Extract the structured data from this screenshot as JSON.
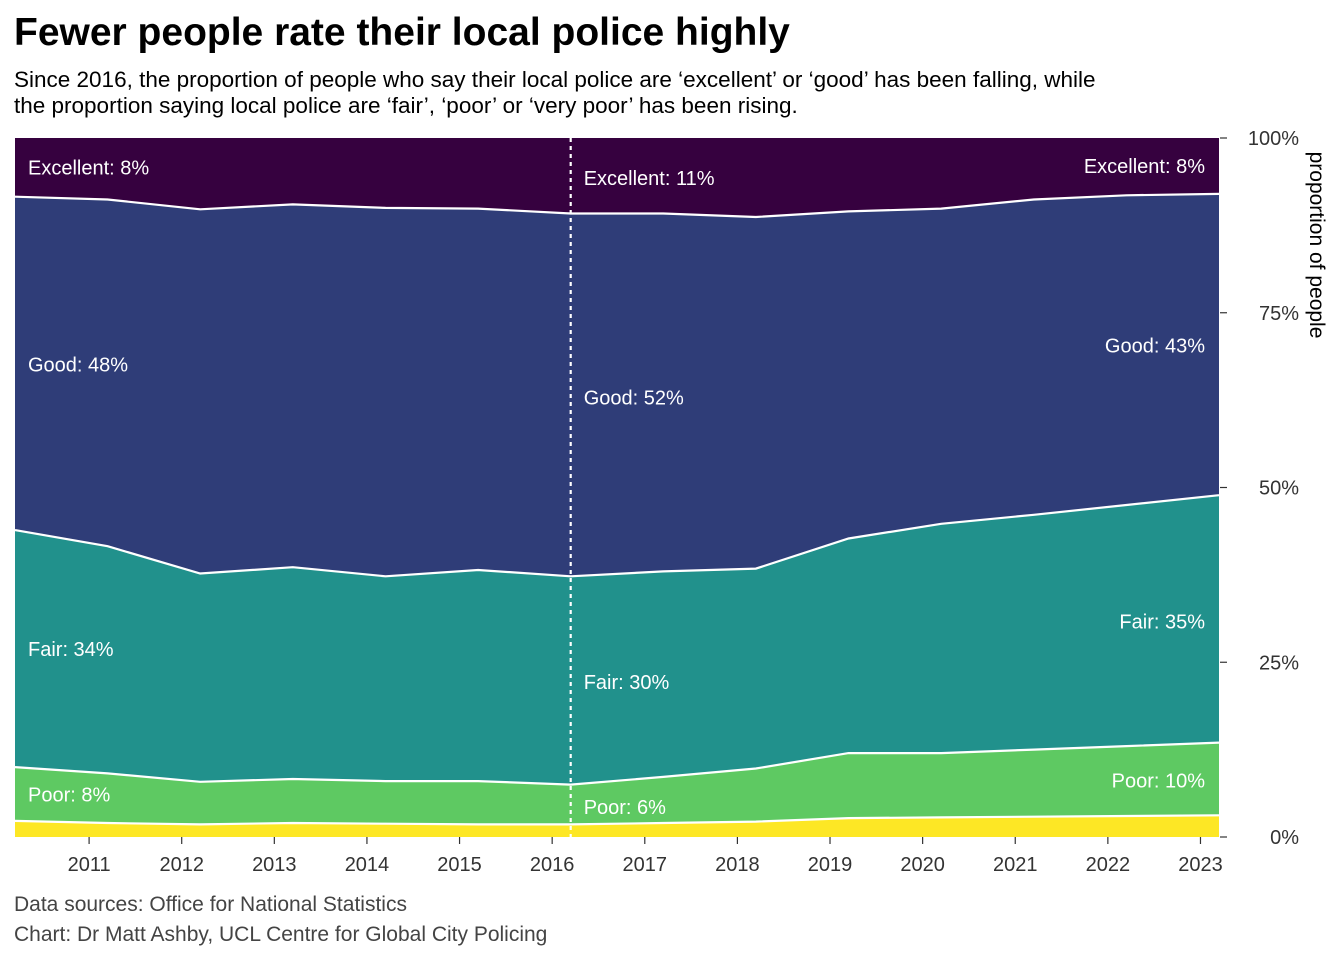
{
  "title": "Fewer people rate their local police highly",
  "subtitle_lines": [
    "Since 2016, the proportion of people who say their local police are ‘excellent’ or ‘good’ has been falling, while",
    "the proportion saying local police are ‘fair’, ‘poor’ or ‘very poor’ has been rising."
  ],
  "caption": {
    "sources": "Data sources: Office for National Statistics",
    "credit": "Chart: Dr Matt Ashby, UCL Centre for Global City Policing"
  },
  "chart_data": {
    "type": "area",
    "stacked": true,
    "x_label": "",
    "y_label": "proportion of people",
    "y_axis_position": "right",
    "x": [
      2010.2,
      2011.2,
      2012.2,
      2013.2,
      2014.2,
      2015.2,
      2016.2,
      2017.2,
      2018.2,
      2019.2,
      2020.2,
      2021.2,
      2022.2,
      2023.2
    ],
    "xlim": [
      2010.2,
      2023.2
    ],
    "ylim": [
      0,
      100
    ],
    "x_ticks": [
      2011,
      2012,
      2013,
      2014,
      2015,
      2016,
      2017,
      2018,
      2019,
      2020,
      2021,
      2022,
      2023
    ],
    "x_tick_labels": [
      "2011",
      "2012",
      "2013",
      "2014",
      "2015",
      "2016",
      "2017",
      "2018",
      "2019",
      "2020",
      "2021",
      "2022",
      "2023"
    ],
    "y_ticks": [
      0,
      25,
      50,
      75,
      100
    ],
    "y_tick_labels": [
      "0%",
      "25%",
      "50%",
      "75%",
      "100%"
    ],
    "grid": false,
    "series": [
      {
        "name": "Very poor",
        "color": "#fde725",
        "values": [
          2.3,
          2.0,
          1.8,
          2.0,
          1.9,
          1.8,
          1.8,
          2.0,
          2.2,
          2.7,
          2.8,
          2.9,
          3.0,
          3.1
        ]
      },
      {
        "name": "Poor",
        "color": "#5ec962",
        "values": [
          7.7,
          7.1,
          6.1,
          6.3,
          6.1,
          6.2,
          5.7,
          6.6,
          7.6,
          9.3,
          9.2,
          9.6,
          10.0,
          10.4
        ]
      },
      {
        "name": "Fair",
        "color": "#21918c",
        "values": [
          33.9,
          32.5,
          29.8,
          30.3,
          29.3,
          30.2,
          29.8,
          29.4,
          28.6,
          30.7,
          32.8,
          33.6,
          34.5,
          35.4
        ]
      },
      {
        "name": "Good",
        "color": "#2f3d78",
        "values": [
          47.7,
          49.6,
          52.1,
          51.9,
          52.7,
          51.7,
          51.9,
          51.2,
          50.3,
          46.8,
          45.1,
          45.1,
          44.3,
          43.1
        ]
      },
      {
        "name": "Excellent",
        "color": "#36013f",
        "values": [
          8.4,
          8.8,
          10.2,
          9.5,
          10.0,
          10.1,
          10.8,
          10.8,
          11.3,
          10.5,
          10.1,
          8.8,
          8.2,
          8.0
        ]
      }
    ],
    "reference_line": {
      "x": 2016.2,
      "style": "dotted",
      "color": "#ffffff"
    },
    "annotations": [
      {
        "text": "Excellent: 8%",
        "x": 2010.2,
        "y": 95.8,
        "anchor": "start"
      },
      {
        "text": "Good: 48%",
        "x": 2010.2,
        "y": 67.6,
        "anchor": "start"
      },
      {
        "text": "Fair: 34%",
        "x": 2010.2,
        "y": 26.9,
        "anchor": "start"
      },
      {
        "text": "Poor: 8%",
        "x": 2010.2,
        "y": 6.1,
        "anchor": "start"
      },
      {
        "text": "Excellent: 11%",
        "x": 2016.2,
        "y": 94.3,
        "anchor": "start"
      },
      {
        "text": "Good: 52%",
        "x": 2016.2,
        "y": 62.9,
        "anchor": "start"
      },
      {
        "text": "Fair: 30%",
        "x": 2016.2,
        "y": 22.2,
        "anchor": "start"
      },
      {
        "text": "Poor: 6%",
        "x": 2016.2,
        "y": 4.3,
        "anchor": "start"
      },
      {
        "text": "Excellent: 8%",
        "x": 2023.2,
        "y": 96.0,
        "anchor": "end"
      },
      {
        "text": "Good: 43%",
        "x": 2023.2,
        "y": 70.3,
        "anchor": "end"
      },
      {
        "text": "Fair: 35%",
        "x": 2023.2,
        "y": 30.8,
        "anchor": "end"
      },
      {
        "text": "Poor: 10%",
        "x": 2023.2,
        "y": 8.1,
        "anchor": "end"
      }
    ]
  }
}
